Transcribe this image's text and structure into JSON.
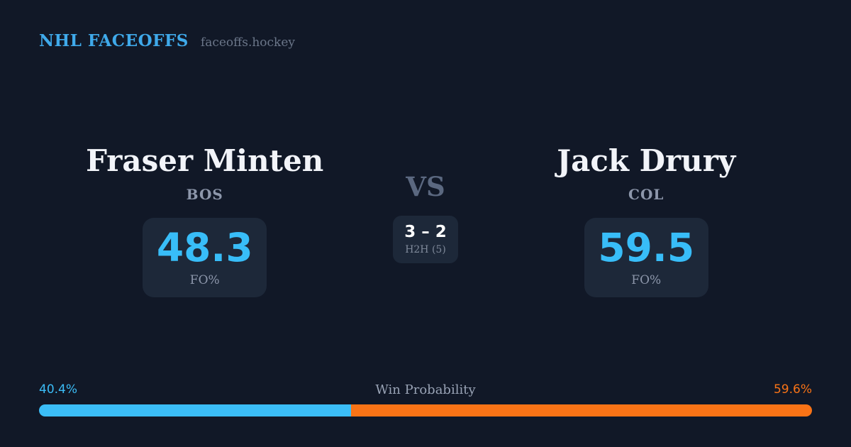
{
  "header": {
    "brand": "NHL FACEOFFS",
    "site": "faceoffs.hockey"
  },
  "players": {
    "left": {
      "name": "Fraser Minten",
      "team": "BOS",
      "fo_pct": "48.3",
      "stat_label": "FO%"
    },
    "right": {
      "name": "Jack Drury",
      "team": "COL",
      "fo_pct": "59.5",
      "stat_label": "FO%"
    }
  },
  "center": {
    "vs_label": "VS",
    "h2h_score": "3 – 2",
    "h2h_label": "H2H (5)"
  },
  "win_probability": {
    "title": "Win Probability",
    "left_pct": "40.4%",
    "right_pct": "59.6%",
    "left_value": 40.4,
    "right_value": 59.6,
    "left_color": "#3bbdf7",
    "right_color": "#f97316"
  },
  "colors": {
    "background": "#111827",
    "panel": "#1d2839",
    "accent_blue": "#38bdf8",
    "accent_orange": "#f97316",
    "brand_blue": "#3fa9ea",
    "text_primary": "#f2f4f9",
    "text_muted": "#8d97ab"
  },
  "chart_data": {
    "type": "bar",
    "title": "Win Probability",
    "orientation": "horizontal-stacked",
    "series": [
      {
        "name": "Fraser Minten (BOS)",
        "values": [
          40.4
        ],
        "color": "#3bbdf7"
      },
      {
        "name": "Jack Drury (COL)",
        "values": [
          59.6
        ],
        "color": "#f97316"
      }
    ],
    "unit": "%",
    "xlim": [
      0,
      100
    ],
    "annotations": [
      "40.4%",
      "59.6%"
    ],
    "legend_position": "none",
    "grid": false,
    "supporting_stats": {
      "faceoff_pct": {
        "Fraser Minten (BOS)": 48.3,
        "Jack Drury (COL)": 59.5
      },
      "head_to_head": {
        "score": "3 – 2",
        "games": 5
      }
    }
  }
}
